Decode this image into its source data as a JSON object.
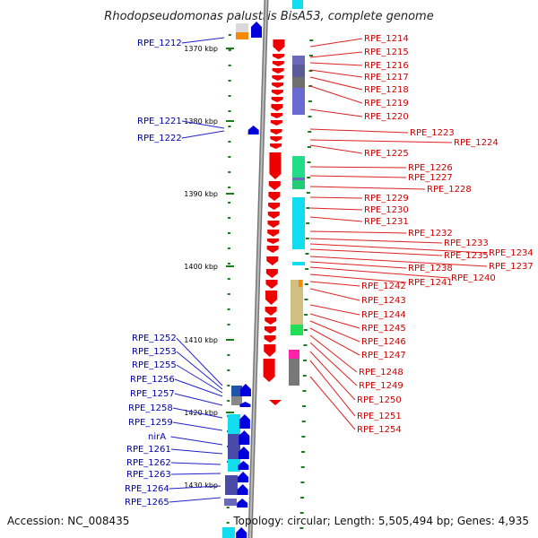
{
  "title": "Rhodopseudomonas palustris BisA53, complete genome",
  "accession": "Accession: NC_008435",
  "topology": "Topology: circular; Length: 5,505,494 bp; Genes: 4,935",
  "ticks": [
    "1370 kbp",
    "1380 kbp",
    "1390 kbp",
    "1400 kbp",
    "1410 kbp",
    "1420 kbp",
    "1430 kbp"
  ],
  "left_labels": [
    "RPE_1212",
    "RPE_1221",
    "RPE_1222",
    "RPE_1252",
    "RPE_1253",
    "RPE_1255",
    "RPE_1256",
    "RPE_1257",
    "RPE_1258",
    "RPE_1259",
    "nirA",
    "RPE_1261",
    "RPE_1262",
    "RPE_1263",
    "RPE_1264",
    "RPE_1265"
  ],
  "right_labels": [
    "RPE_1214",
    "RPE_1215",
    "RPE_1216",
    "RPE_1217",
    "RPE_1218",
    "RPE_1219",
    "RPE_1220",
    "RPE_1223",
    "RPE_1224",
    "RPE_1225",
    "RPE_1226",
    "RPE_1227",
    "RPE_1228",
    "RPE_1229",
    "RPE_1230",
    "RPE_1231",
    "RPE_1232",
    "RPE_1233",
    "RPE_1234",
    "RPE_1235",
    "RPE_1237",
    "RPE_1238",
    "RPE_1240",
    "RPE_1241",
    "RPE_1242",
    "RPE_1243",
    "RPE_1244",
    "RPE_1245",
    "RPE_1246",
    "RPE_1247",
    "RPE_1248",
    "RPE_1249",
    "RPE_1250",
    "RPE_1251",
    "RPE_1254"
  ],
  "colors": {
    "forward": "#ee0000",
    "reverse": "#0000dd",
    "backbone": "#8c8c8c",
    "tick_mark": "#1c7a1c"
  }
}
